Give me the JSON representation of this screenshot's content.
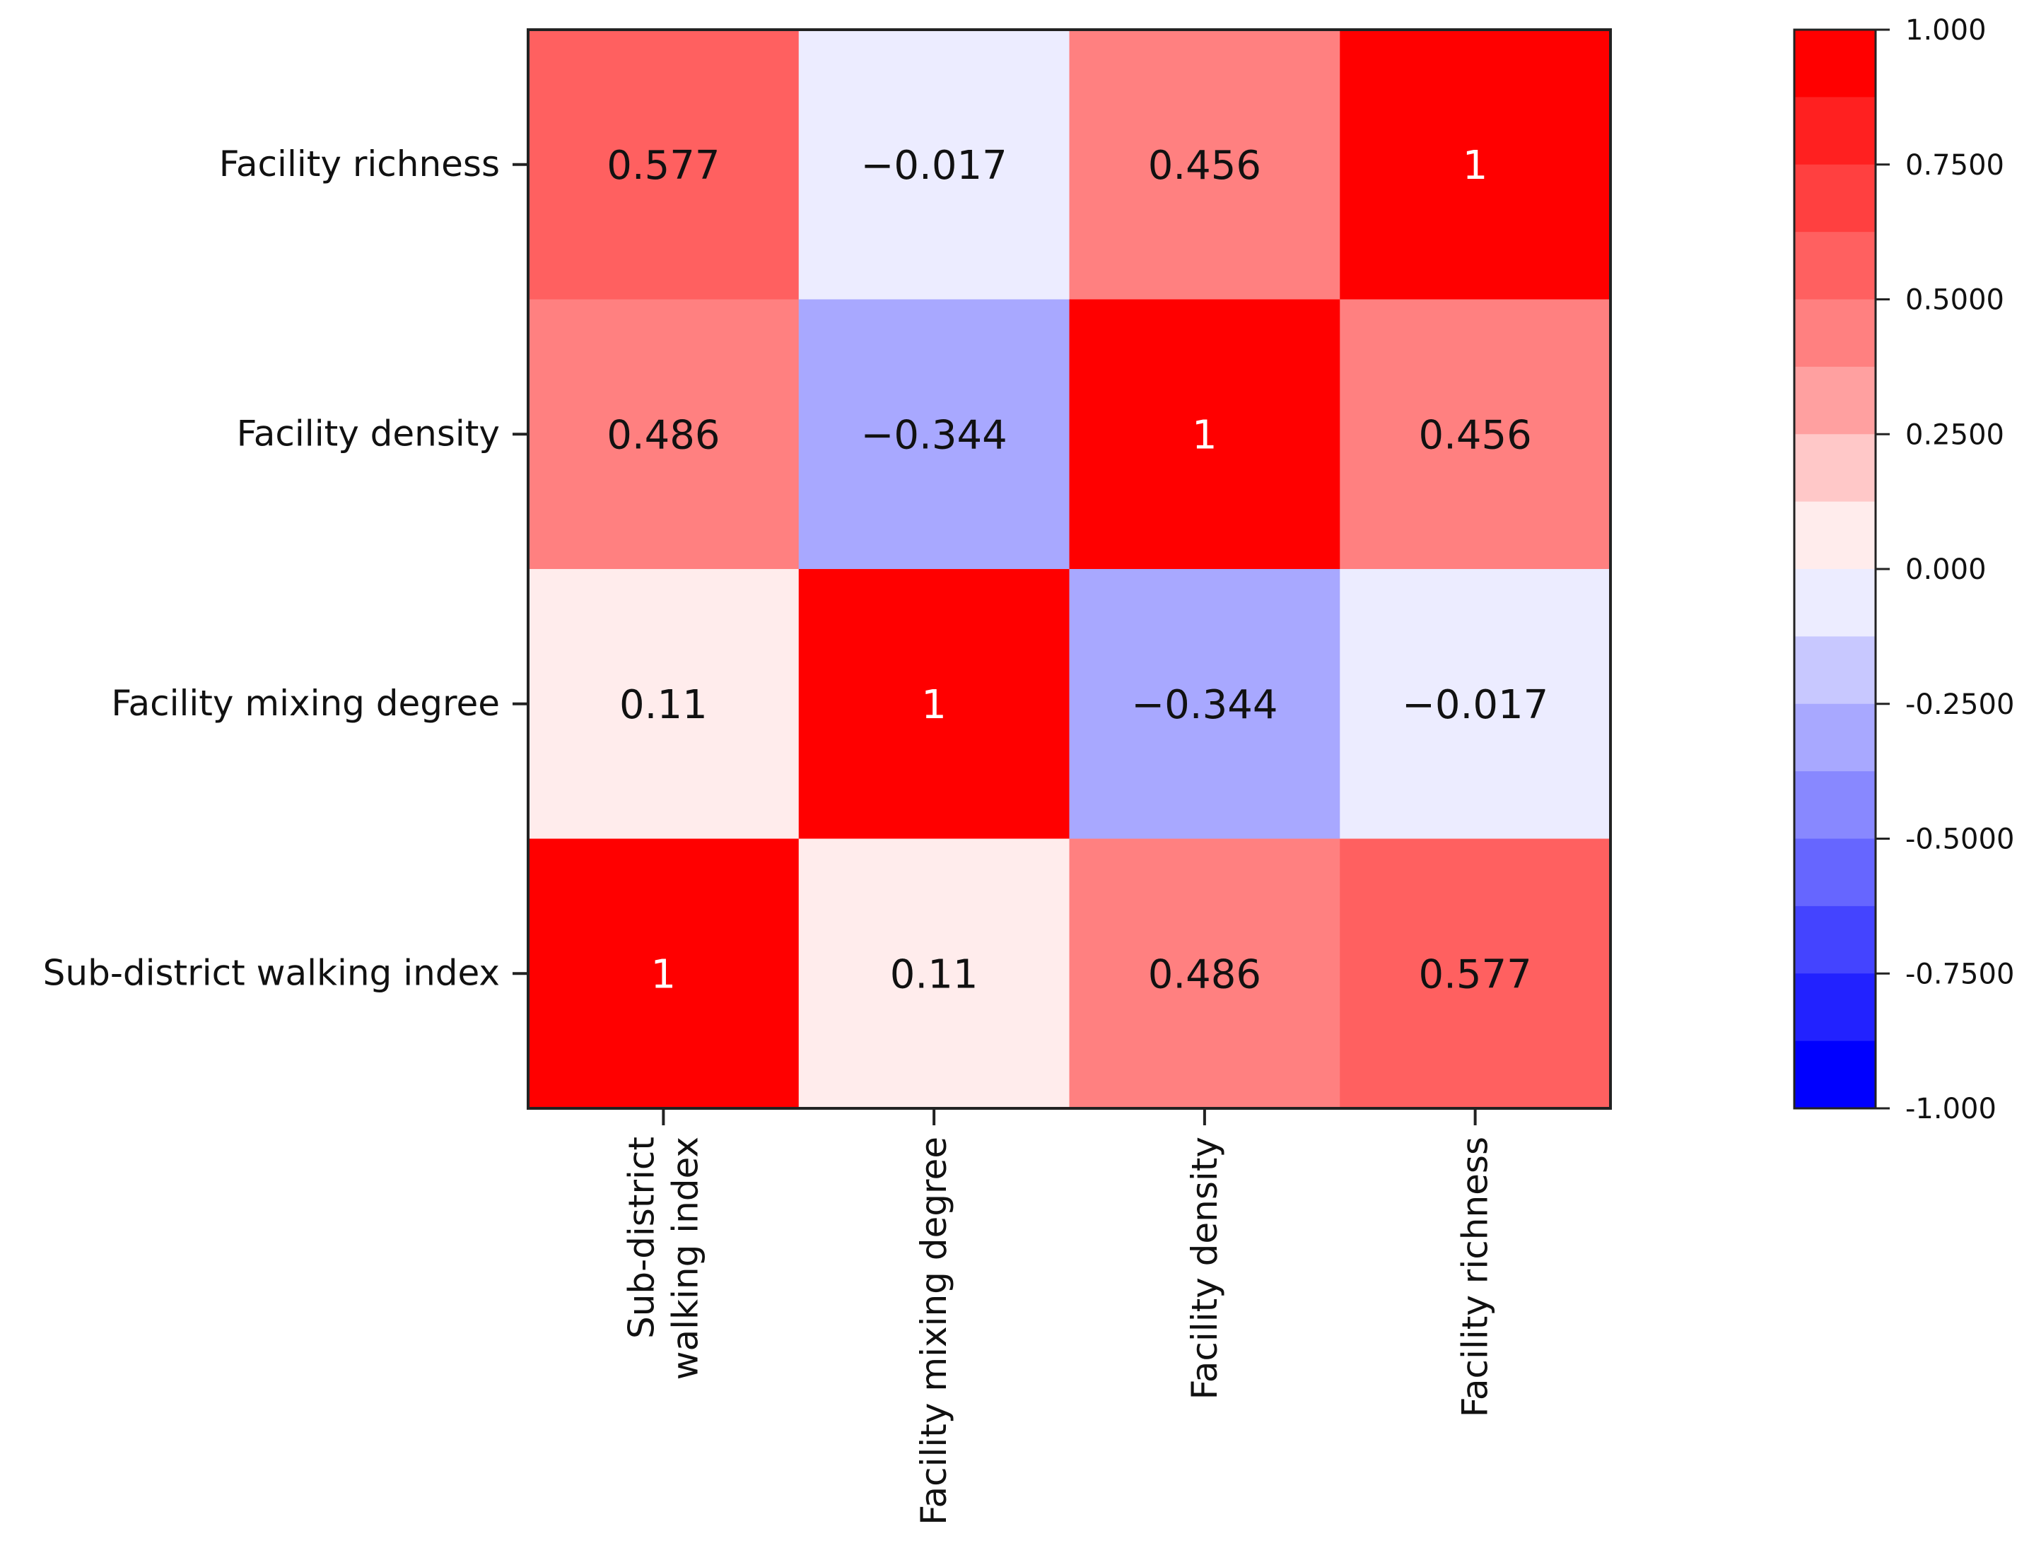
{
  "chart_data": {
    "type": "heatmap",
    "title": "",
    "xlabel": "",
    "ylabel": "",
    "rows": [
      "Facility richness",
      "Facility density",
      "Facility mixing degree",
      "Sub-district walking index"
    ],
    "columns": [
      [
        "Sub-district",
        "walking index"
      ],
      [
        "Facility mixing degree"
      ],
      [
        "Facility density"
      ],
      [
        "Facility richness"
      ]
    ],
    "values": [
      [
        0.577,
        -0.017,
        0.456,
        1
      ],
      [
        0.486,
        -0.344,
        1,
        0.456
      ],
      [
        0.11,
        1,
        -0.344,
        -0.017
      ],
      [
        1,
        0.11,
        0.486,
        0.577
      ]
    ],
    "cell_labels": [
      [
        "0.577",
        "−0.017",
        "0.456",
        "1"
      ],
      [
        "0.486",
        "−0.344",
        "1",
        "0.456"
      ],
      [
        "0.11",
        "1",
        "−0.344",
        "−0.017"
      ],
      [
        "1",
        "0.11",
        "0.486",
        "0.577"
      ]
    ],
    "colorbar": {
      "range": [
        -1,
        1
      ],
      "levels": 16,
      "tick_values": [
        1,
        0.75,
        0.5,
        0.25,
        0,
        -0.25,
        -0.5,
        -0.75,
        -1
      ],
      "tick_labels": [
        "1.000",
        "0.7500",
        "0.5000",
        "0.2500",
        "0.000",
        "-0.2500",
        "-0.5000",
        "-0.7500",
        "-1.000"
      ],
      "colors_top_to_bottom": [
        "#ff0000",
        "#ff2020",
        "#ff4040",
        "#ff6060",
        "#ff8080",
        "#ffa0a0",
        "#ffc8c8",
        "#ffecec",
        "#ececff",
        "#c8c8ff",
        "#a8a8ff",
        "#8888ff",
        "#6666ff",
        "#4444ff",
        "#2222ff",
        "#0000ff"
      ]
    },
    "grid": false,
    "legend": "right colorbar"
  }
}
